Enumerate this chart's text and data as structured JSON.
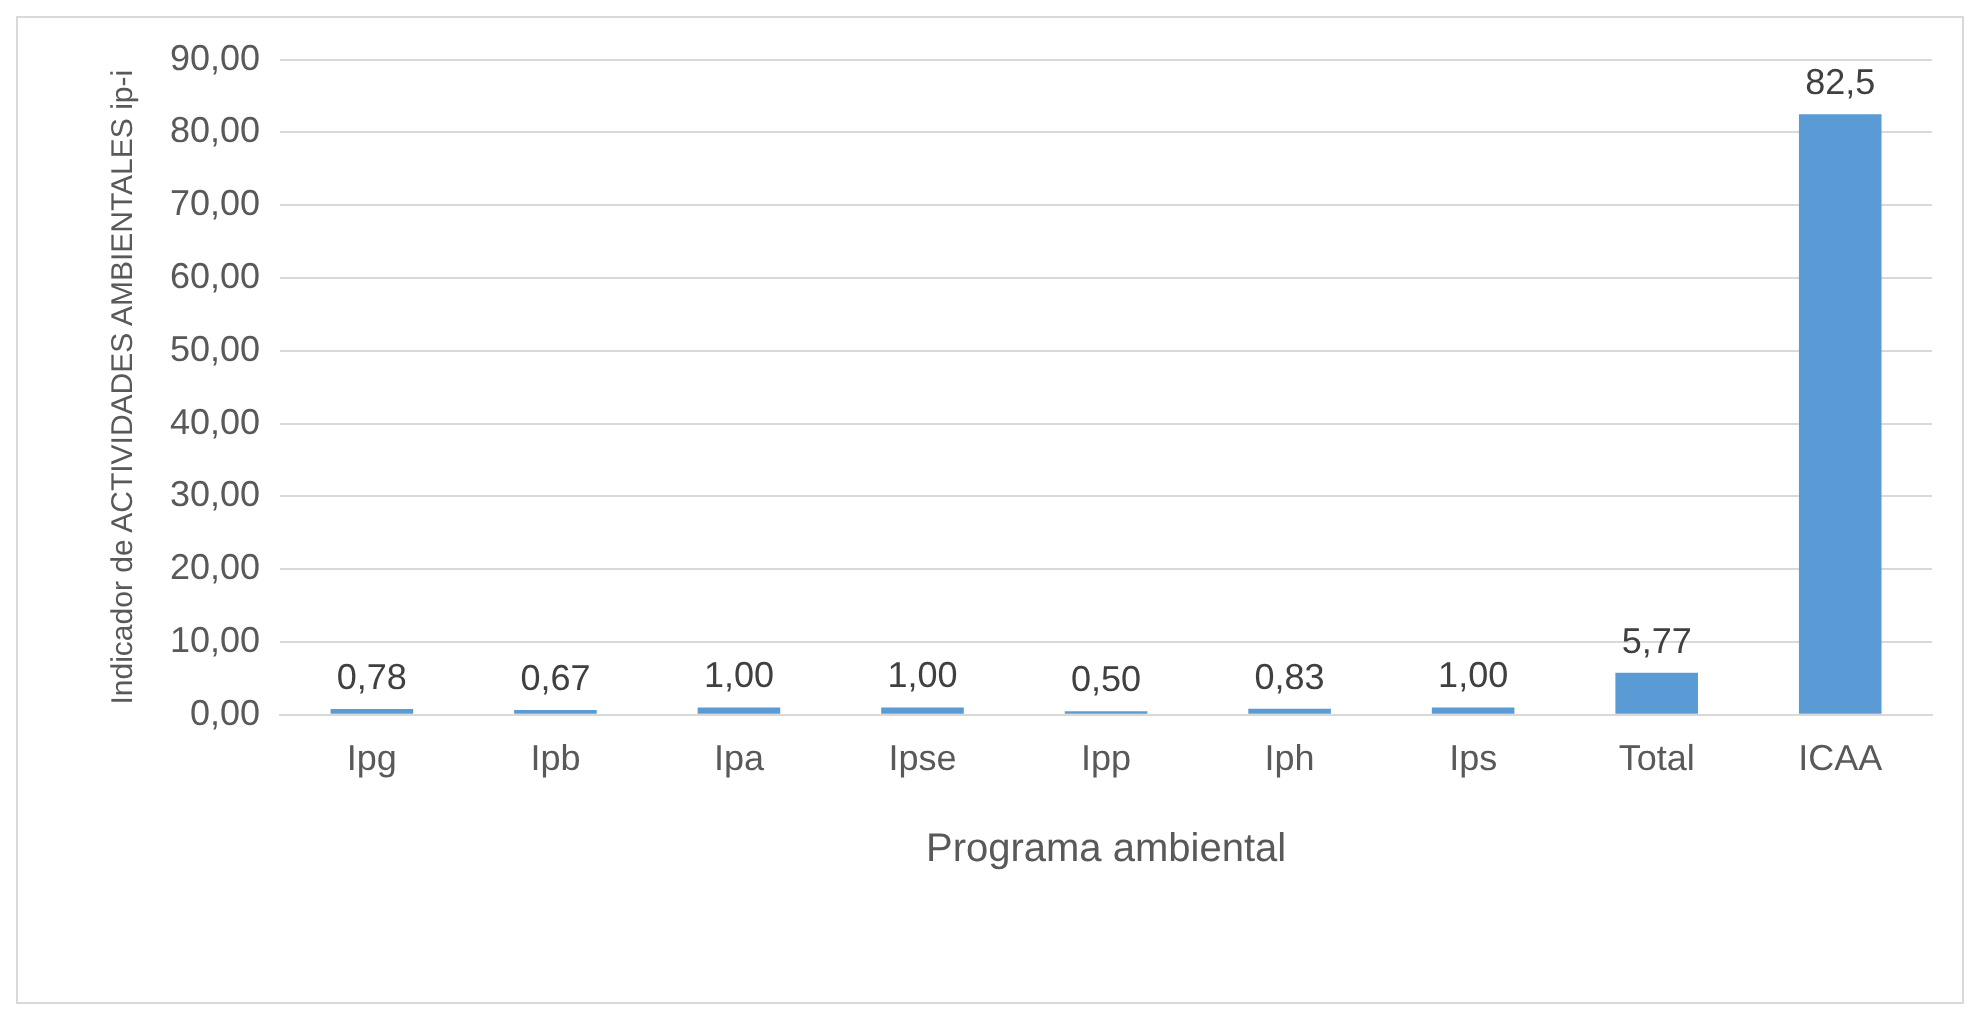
{
  "chart_data": {
    "type": "bar",
    "xlabel": "Programa ambiental",
    "ylabel": "Indicador de ACTIVIDADES AMBIENTALES ip-i",
    "categories": [
      "Ipg",
      "Ipb",
      "Ipa",
      "Ipse",
      "Ipp",
      "Iph",
      "Ips",
      "Total",
      "ICAA"
    ],
    "values": [
      0.78,
      0.67,
      1.0,
      1.0,
      0.5,
      0.83,
      1.0,
      5.77,
      82.5
    ],
    "value_labels": [
      "0,78",
      "0,67",
      "1,00",
      "1,00",
      "0,50",
      "0,83",
      "1,00",
      "5,77",
      "82,5"
    ],
    "color": "#5b9bd5",
    "ylim": [
      0,
      90
    ],
    "yticks": [
      {
        "value": 0,
        "label": "0,00"
      },
      {
        "value": 10,
        "label": "10,00"
      },
      {
        "value": 20,
        "label": "20,00"
      },
      {
        "value": 30,
        "label": "30,00"
      },
      {
        "value": 40,
        "label": "40,00"
      },
      {
        "value": 50,
        "label": "50,00"
      },
      {
        "value": 60,
        "label": "60,00"
      },
      {
        "value": 70,
        "label": "70,00"
      },
      {
        "value": 80,
        "label": "80,00"
      },
      {
        "value": 90,
        "label": "90,00"
      }
    ],
    "grid": "y",
    "legend": false
  }
}
